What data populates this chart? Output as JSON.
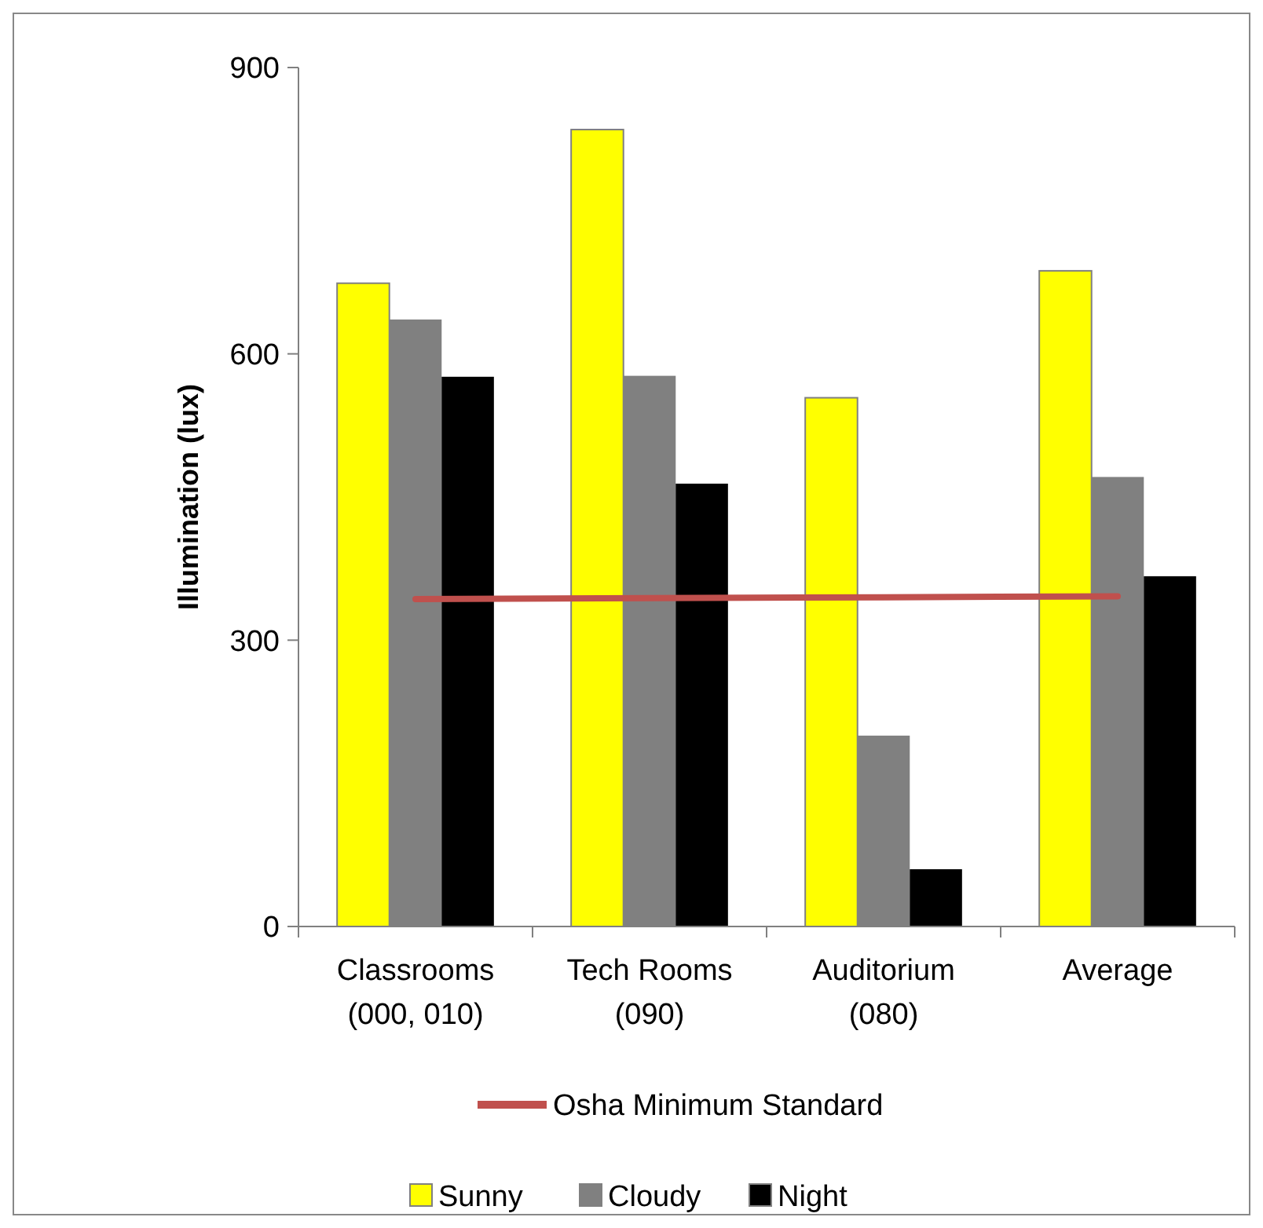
{
  "chart_data": {
    "type": "bar",
    "ylabel": "Illumination (lux)",
    "categories": [
      "Classrooms\n(000, 010)",
      "Tech Rooms\n(090)",
      "Auditorium\n(080)",
      "Average"
    ],
    "series": [
      {
        "name": "Sunny",
        "color": "#ffff00",
        "values": [
          674,
          835,
          554,
          687
        ]
      },
      {
        "name": "Cloudy",
        "color": "#808080",
        "values": [
          636,
          577,
          200,
          471
        ]
      },
      {
        "name": "Night",
        "color": "#000000",
        "values": [
          576,
          464,
          60,
          367
        ]
      },
      {
        "name": "Osha Minimum Standard",
        "type": "line",
        "color": "#c0504d",
        "values": [
          343,
          344,
          345,
          346
        ]
      }
    ],
    "ylim": [
      0,
      900
    ],
    "yticks": [
      0,
      300,
      600,
      900
    ],
    "grid": false,
    "legend": "bottom"
  }
}
